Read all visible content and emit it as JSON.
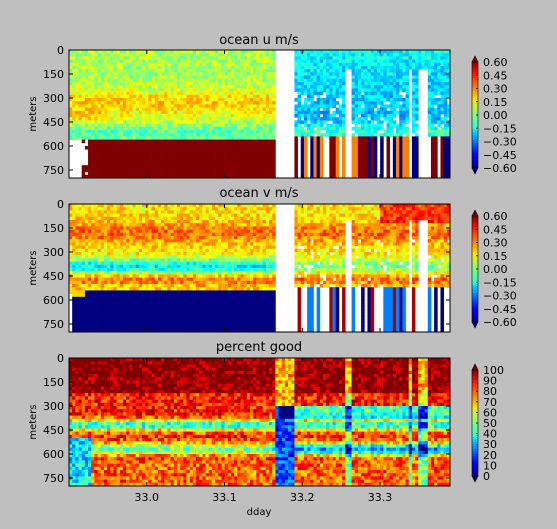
{
  "figure": {
    "x_axis_label": "dday",
    "colors": {
      "background": "#bfbfbf",
      "mask": "#ffffff",
      "axes": "#000000"
    }
  },
  "chart_data": [
    {
      "type": "heatmap",
      "title": "ocean u m/s",
      "ylabel": "meters",
      "xlabel": "",
      "ylim": [
        800,
        0
      ],
      "xlim": [
        32.9,
        33.39
      ],
      "ytick_labels": [
        "0",
        "150",
        "300",
        "450",
        "600",
        "750"
      ],
      "ytick_values": [
        0,
        150,
        300,
        450,
        600,
        750
      ],
      "colorbar": {
        "min": -0.6,
        "max": 0.6,
        "extend": "both",
        "tick_labels": [
          "0.60",
          "0.45",
          "0.30",
          "0.15",
          "0.00",
          "−0.15",
          "−0.30",
          "−0.45",
          "−0.60"
        ]
      },
      "data_summary": {
        "near_surface_u": 0.1,
        "deep_masked_region_u": 0.6,
        "later_period_u": -0.2,
        "data_gap_ddays": [
          33.17,
          33.185,
          33.26,
          33.34,
          33.355
        ]
      }
    },
    {
      "type": "heatmap",
      "title": "ocean v m/s",
      "ylabel": "meters",
      "xlabel": "",
      "ylim": [
        800,
        0
      ],
      "xlim": [
        32.9,
        33.39
      ],
      "ytick_labels": [
        "0",
        "150",
        "300",
        "450",
        "600",
        "750"
      ],
      "ytick_values": [
        0,
        150,
        300,
        450,
        600,
        750
      ],
      "colorbar": {
        "min": -0.6,
        "max": 0.6,
        "extend": "both",
        "tick_labels": [
          "0.60",
          "0.45",
          "0.30",
          "0.15",
          "0.00",
          "−0.15",
          "−0.30",
          "−0.45",
          "−0.60"
        ]
      },
      "data_summary": {
        "near_surface_v": 0.2,
        "deep_masked_region_v": -0.6,
        "data_gap_ddays": [
          33.17,
          33.185,
          33.26,
          33.34,
          33.355
        ]
      }
    },
    {
      "type": "heatmap",
      "title": "percent good",
      "ylabel": "meters",
      "xlabel": "dday",
      "ylim": [
        800,
        0
      ],
      "xlim": [
        32.9,
        33.39
      ],
      "ytick_labels": [
        "0",
        "150",
        "300",
        "450",
        "600",
        "750"
      ],
      "ytick_values": [
        0,
        150,
        300,
        450,
        600,
        750
      ],
      "xtick_labels": [
        "33.0",
        "33.1",
        "33.2",
        "33.3"
      ],
      "xtick_values": [
        33.0,
        33.1,
        33.2,
        33.3
      ],
      "colorbar": {
        "min": 0,
        "max": 100,
        "extend": "both",
        "tick_labels": [
          "100",
          "90",
          "80",
          "70",
          "60",
          "50",
          "40",
          "30",
          "20",
          "10",
          "0"
        ]
      },
      "data_summary": {
        "upper_percent_good": 100,
        "mid_band_percent_good": 40,
        "deep_percent_good": 70
      }
    }
  ]
}
